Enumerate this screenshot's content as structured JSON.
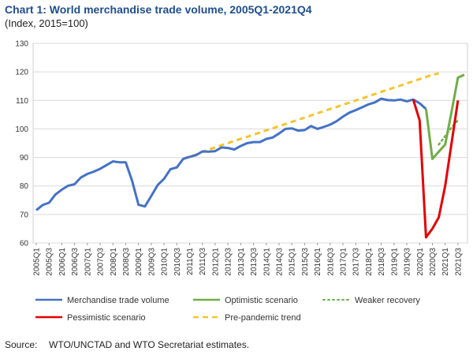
{
  "page": {
    "title": "Chart 1: World merchandise trade volume, 2005Q1-2021Q4",
    "subtitle": "(Index, 2015=100)",
    "source_label": "Source:",
    "source_text": "WTO/UNCTAD and WTO Secretariat estimates."
  },
  "chart_data": {
    "type": "line",
    "title": "Chart 1: World merchandise trade volume, 2005Q1-2021Q4",
    "subtitle": "(Index, 2015=100)",
    "ylim": [
      60,
      130
    ],
    "yticks": [
      60,
      70,
      80,
      90,
      100,
      110,
      120,
      130
    ],
    "grid": "horizontal",
    "legend_position": "bottom",
    "xlabels": [
      "2005Q1",
      "2005Q3",
      "2006Q1",
      "2006Q3",
      "2007Q1",
      "2007Q3",
      "2008Q1",
      "2008Q3",
      "2009Q1",
      "2009Q3",
      "2010Q1",
      "2010Q3",
      "2011Q1",
      "2011Q3",
      "2012Q1",
      "2012Q3",
      "2013Q1",
      "2013Q3",
      "2014Q1",
      "2014Q3",
      "2015Q1",
      "2015Q3",
      "2016Q1",
      "2016Q3",
      "2017Q1",
      "2017Q3",
      "2018Q1",
      "2018Q3",
      "2019Q1",
      "2019Q3",
      "2020Q1",
      "2020Q3",
      "2021Q1",
      "2021Q3"
    ],
    "series": [
      {
        "name": "Merchandise trade volume",
        "color": "#4472c4",
        "dash": "solid",
        "start": 0,
        "values": [
          71.5,
          73.3,
          74.1,
          77.0,
          78.7,
          80.1,
          80.6,
          83.0,
          84.2,
          85.0,
          86.0,
          87.3,
          88.6,
          88.3,
          88.3,
          81.8,
          73.4,
          72.8,
          76.5,
          80.3,
          82.5,
          85.9,
          86.5,
          89.5,
          90.2,
          90.8,
          92.1,
          92.0,
          92.2,
          93.5,
          93.3,
          92.8,
          94.0,
          95.0,
          95.4,
          95.4,
          96.5,
          97.0,
          98.4,
          100.0,
          100.2,
          99.4,
          99.6,
          101.0,
          100.0,
          100.7,
          101.5,
          102.7,
          104.3,
          105.7,
          106.6,
          107.6,
          108.6,
          109.3,
          110.6,
          110.1,
          110.0,
          110.3,
          109.7,
          110.3,
          109.0,
          107.0
        ]
      },
      {
        "name": "Optimistic scenario",
        "color": "#70ad47",
        "dash": "solid",
        "start": 61,
        "values": [
          107.0,
          89.5,
          92.0,
          94.5,
          106.0,
          118.0,
          119.0
        ]
      },
      {
        "name": "Weaker recovery",
        "color": "#70ad47",
        "dash": "dotted",
        "start": 63,
        "values": [
          94.5,
          97.5,
          100.5,
          103.0
        ]
      },
      {
        "name": "Pessimistic scenario",
        "color": "#e00000",
        "dash": "solid",
        "start": 59,
        "values": [
          110.3,
          103.0,
          62.0,
          65.0,
          69.0,
          80.0,
          95.0,
          110.0
        ]
      },
      {
        "name": "Pre-pandemic trend",
        "color": "#f4c430",
        "dash": "dashed",
        "start": 23,
        "values": [
          89.5,
          90.3,
          91.0,
          92.0,
          92.8,
          93.5,
          94.3,
          95.0,
          95.8,
          96.5,
          97.2,
          98.0,
          98.7,
          99.5,
          100.2,
          101.0,
          101.7,
          102.5,
          103.2,
          104.0,
          104.7,
          105.5,
          106.2,
          107.0,
          107.7,
          108.5,
          109.2,
          110.0,
          110.7,
          111.5,
          112.2,
          113.0,
          113.7,
          114.5,
          115.2,
          116.0,
          116.7,
          117.5,
          118.2,
          119.0,
          119.5
        ]
      }
    ]
  }
}
